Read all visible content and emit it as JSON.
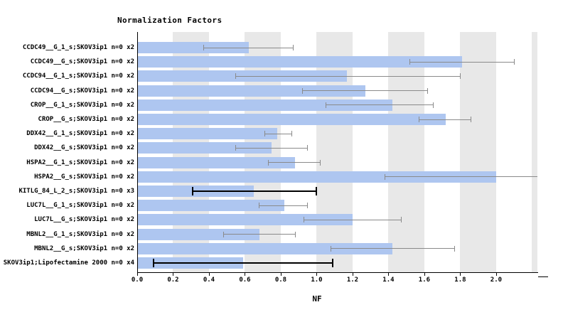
{
  "chart_data": {
    "type": "bar",
    "orientation": "horizontal",
    "title": "Normalization Factors",
    "xlabel": "NF",
    "xlim": [
      0,
      2.23
    ],
    "xticks": [
      "0.0",
      "0.2",
      "0.4",
      "0.6",
      "0.8",
      "1.0",
      "1.2",
      "1.4",
      "1.6",
      "1.8",
      "2.0"
    ],
    "band_interval": 0.2,
    "grid": "alternating-vertical-bands",
    "legend": "none",
    "colors": {
      "bar": "#aec6f0",
      "band": "#e8e8e8",
      "error_default": "#8a8a8a",
      "error_highlight": "#000000",
      "axis": "#000000"
    },
    "rows": [
      {
        "label": "CCDC49__G_1_s;SKOV3ip1 n=0 x2",
        "value": 0.62,
        "err_low": 0.37,
        "err_high": 0.87,
        "error_style": "default"
      },
      {
        "label": "CCDC49__G_s;SKOV3ip1 n=0 x2",
        "value": 1.81,
        "err_low": 1.52,
        "err_high": 2.1,
        "error_style": "default"
      },
      {
        "label": "CCDC94__G_1_s;SKOV3ip1 n=0 x2",
        "value": 1.17,
        "err_low": 0.55,
        "err_high": 1.8,
        "error_style": "default"
      },
      {
        "label": "CCDC94__G_s;SKOV3ip1 n=0 x2",
        "value": 1.27,
        "err_low": 0.92,
        "err_high": 1.62,
        "error_style": "default"
      },
      {
        "label": "CROP__G_1_s;SKOV3ip1 n=0 x2",
        "value": 1.42,
        "err_low": 1.05,
        "err_high": 1.65,
        "error_style": "default"
      },
      {
        "label": "CROP__G_s;SKOV3ip1 n=0 x2",
        "value": 1.72,
        "err_low": 1.57,
        "err_high": 1.86,
        "error_style": "default"
      },
      {
        "label": "DDX42__G_1_s;SKOV3ip1 n=0 x2",
        "value": 0.78,
        "err_low": 0.71,
        "err_high": 0.86,
        "error_style": "default"
      },
      {
        "label": "DDX42__G_s;SKOV3ip1 n=0 x2",
        "value": 0.75,
        "err_low": 0.55,
        "err_high": 0.95,
        "error_style": "default"
      },
      {
        "label": "HSPA2__G_1_s;SKOV3ip1 n=0 x2",
        "value": 0.88,
        "err_low": 0.73,
        "err_high": 1.02,
        "error_style": "default"
      },
      {
        "label": "HSPA2__G_s;SKOV3ip1 n=0 x2",
        "value": 2.0,
        "err_low": 1.38,
        "err_high": 2.3,
        "error_style": "default"
      },
      {
        "label": "KITLG_84_L_2_s;SKOV3ip1 n=0 x3",
        "value": 0.65,
        "err_low": 0.31,
        "err_high": 1.0,
        "error_style": "highlight"
      },
      {
        "label": "LUC7L__G_1_s;SKOV3ip1 n=0 x2",
        "value": 0.82,
        "err_low": 0.68,
        "err_high": 0.95,
        "error_style": "default"
      },
      {
        "label": "LUC7L__G_s;SKOV3ip1 n=0 x2",
        "value": 1.2,
        "err_low": 0.93,
        "err_high": 1.47,
        "error_style": "default"
      },
      {
        "label": "MBNL2__G_1_s;SKOV3ip1 n=0 x2",
        "value": 0.68,
        "err_low": 0.48,
        "err_high": 0.88,
        "error_style": "default"
      },
      {
        "label": "MBNL2__G_s;SKOV3ip1 n=0 x2",
        "value": 1.42,
        "err_low": 1.08,
        "err_high": 1.77,
        "error_style": "default"
      },
      {
        "label": "SKOV3ip1;Lipofectamine 2000 n=0 x4",
        "value": 0.59,
        "err_low": 0.09,
        "err_high": 1.09,
        "error_style": "highlight"
      }
    ]
  }
}
